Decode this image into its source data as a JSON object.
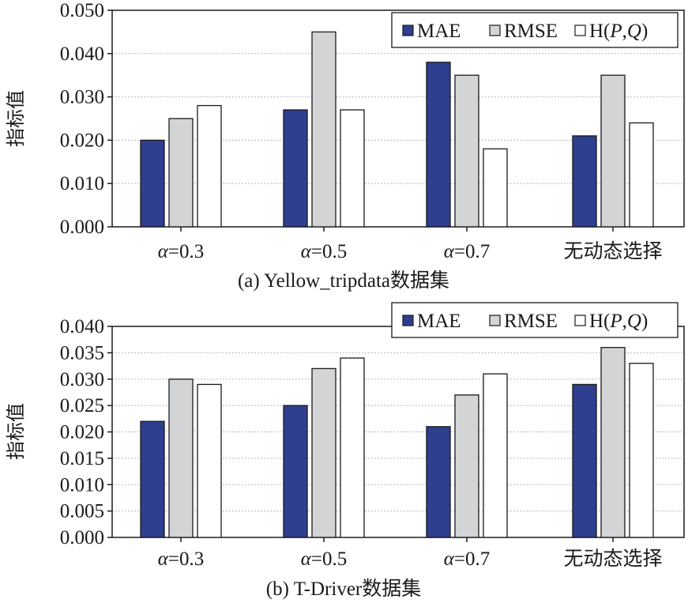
{
  "chart_data": [
    {
      "type": "bar",
      "caption": "(a) Yellow_tripdata数据集",
      "ylabel": "指标值",
      "ylim": [
        0,
        0.05
      ],
      "yticks": [
        "0.000",
        "0.010",
        "0.020",
        "0.030",
        "0.040",
        "0.050"
      ],
      "categories": [
        "α=0.3",
        "α=0.5",
        "α=0.7",
        "无动态选择"
      ],
      "grid": true,
      "legend_position": "top-right",
      "series": [
        {
          "name": "MAE",
          "color": "#2e3f8f",
          "values": [
            0.02,
            0.027,
            0.038,
            0.021
          ]
        },
        {
          "name": "RMSE",
          "color": "#d2d4d6",
          "values": [
            0.025,
            0.045,
            0.035,
            0.035
          ]
        },
        {
          "name": "H(P,Q)",
          "color": "#ffffff",
          "values": [
            0.028,
            0.027,
            0.018,
            0.024
          ]
        }
      ]
    },
    {
      "type": "bar",
      "caption": "(b) T-Driver数据集",
      "ylabel": "指标值",
      "ylim": [
        0,
        0.04
      ],
      "yticks": [
        "0.000",
        "0.005",
        "0.010",
        "0.015",
        "0.020",
        "0.025",
        "0.030",
        "0.035",
        "0.040"
      ],
      "categories": [
        "α=0.3",
        "α=0.5",
        "α=0.7",
        "无动态选择"
      ],
      "grid": true,
      "legend_position": "top-right",
      "series": [
        {
          "name": "MAE",
          "color": "#2e3f8f",
          "values": [
            0.022,
            0.025,
            0.021,
            0.029
          ]
        },
        {
          "name": "RMSE",
          "color": "#d2d4d6",
          "values": [
            0.03,
            0.032,
            0.027,
            0.036
          ]
        },
        {
          "name": "H(P,Q)",
          "color": "#ffffff",
          "values": [
            0.029,
            0.034,
            0.031,
            0.033
          ]
        }
      ]
    }
  ]
}
